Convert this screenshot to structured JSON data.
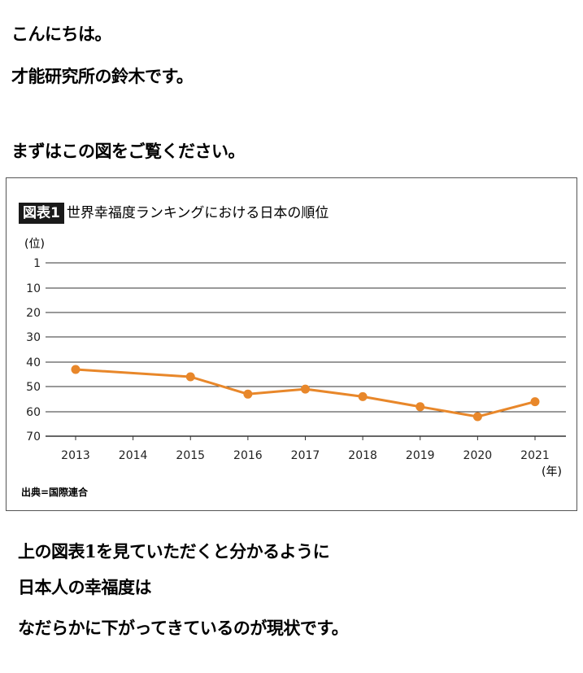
{
  "text": {
    "greeting": "こんにちは。",
    "intro": "才能研究所の鈴木です。",
    "prompt": "まずはこの図をご覧ください。",
    "body_line1": "上の図表1を見ていただくと分かるように",
    "body_line2": "日本人の幸福度は",
    "body_line3": "なだらかに下がってきているのが現状です。"
  },
  "chart_data": {
    "type": "line",
    "badge": "図表1",
    "title": "世界幸福度ランキングにおける日本の順位",
    "ylabel": "(位)",
    "xlabel": "(年)",
    "source": "出典=国際連合",
    "y_reversed": true,
    "ylim": [
      1,
      70
    ],
    "yticks": [
      1,
      10,
      20,
      30,
      40,
      50,
      60,
      70
    ],
    "x_ticks": [
      2013,
      2014,
      2015,
      2016,
      2017,
      2018,
      2019,
      2020,
      2021
    ],
    "series": [
      {
        "x": [
          2013,
          2015,
          2016,
          2017,
          2018,
          2019,
          2020,
          2021
        ],
        "y": [
          43,
          46,
          53,
          51,
          54,
          58,
          62,
          56
        ]
      }
    ],
    "line_color": "#e8872a",
    "grid_color": "#333333",
    "grid": true
  }
}
